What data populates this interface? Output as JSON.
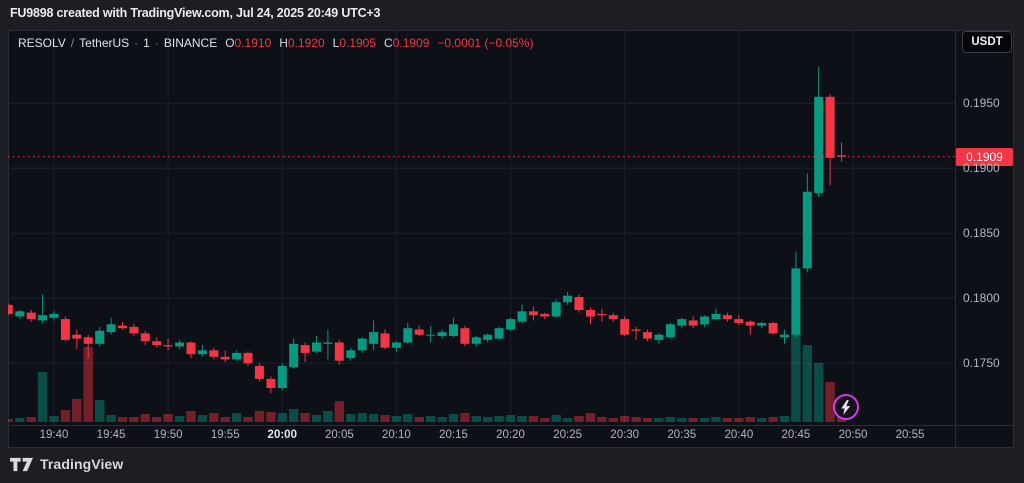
{
  "top_bar": {
    "attribution": "FU9898 created with TradingView.com, Jul 24, 2025 20:49 UTC+3"
  },
  "header": {
    "symbol": "RESOLV",
    "sep1": "/",
    "quote": "TetherUS",
    "sep2": "·",
    "interval": "1",
    "sep3": "·",
    "exchange": "BINANCE",
    "ohlc": [
      {
        "k": "O",
        "v": "0.1910"
      },
      {
        "k": "H",
        "v": "0.1920"
      },
      {
        "k": "L",
        "v": "0.1905"
      },
      {
        "k": "C",
        "v": "0.1909"
      }
    ],
    "change": "−0.0001 (−0.05%)"
  },
  "price_axis": {
    "currency_button": "USDT",
    "ticks": [
      "0.1950",
      "0.1900",
      "0.1850",
      "0.1800",
      "0.1750"
    ],
    "last_label": "0.1909"
  },
  "time_axis": {
    "labels": [
      {
        "t": "19:40",
        "bold": false
      },
      {
        "t": "19:45",
        "bold": false
      },
      {
        "t": "19:50",
        "bold": false
      },
      {
        "t": "19:55",
        "bold": false
      },
      {
        "t": "20:00",
        "bold": true
      },
      {
        "t": "20:05",
        "bold": false
      },
      {
        "t": "20:10",
        "bold": false
      },
      {
        "t": "20:15",
        "bold": false
      },
      {
        "t": "20:20",
        "bold": false
      },
      {
        "t": "20:25",
        "bold": false
      },
      {
        "t": "20:30",
        "bold": false
      },
      {
        "t": "20:35",
        "bold": false
      },
      {
        "t": "20:40",
        "bold": false
      },
      {
        "t": "20:45",
        "bold": false
      },
      {
        "t": "20:50",
        "bold": false
      },
      {
        "t": "20:55",
        "bold": false
      }
    ]
  },
  "footer": {
    "brand": "TradingView"
  },
  "icons": {
    "boost": "lightning-icon",
    "logo": "tradingview-logo"
  },
  "colors": {
    "up": "#089981",
    "down": "#f23645",
    "vol_up": "rgba(8,153,129,0.45)",
    "vol_down": "rgba(242,54,69,0.45)",
    "grid": "#1b202b",
    "last_label_bg": "#f23645",
    "boost_ring": "#cb3ce8"
  },
  "chart_data": {
    "type": "candlestick",
    "title": "RESOLV / TetherUS · 1 · BINANCE",
    "interval": "1m",
    "legend_position": "top-left",
    "grid": true,
    "ylim": [
      0.17025,
      0.20064
    ],
    "last_price": 0.1909,
    "columns": [
      "time",
      "open",
      "high",
      "low",
      "close",
      "volume_rel"
    ],
    "candles": [
      [
        "19:36",
        0.1795,
        0.1796,
        0.1787,
        0.1788,
        3
      ],
      [
        "19:37",
        0.1786,
        0.1791,
        0.1784,
        0.179,
        4
      ],
      [
        "19:38",
        0.1789,
        0.1791,
        0.1782,
        0.1784,
        5
      ],
      [
        "19:39",
        0.1783,
        0.1803,
        0.1781,
        0.1787,
        50
      ],
      [
        "19:40",
        0.1785,
        0.179,
        0.1783,
        0.1788,
        6
      ],
      [
        "19:41",
        0.1784,
        0.1786,
        0.1767,
        0.1768,
        12
      ],
      [
        "19:42",
        0.1772,
        0.1776,
        0.1761,
        0.1769,
        23
      ],
      [
        "19:43",
        0.177,
        0.1772,
        0.1754,
        0.1765,
        75
      ],
      [
        "19:44",
        0.1765,
        0.1778,
        0.1763,
        0.1775,
        22
      ],
      [
        "19:45",
        0.1774,
        0.1785,
        0.1772,
        0.178,
        7
      ],
      [
        "19:46",
        0.1779,
        0.1782,
        0.1776,
        0.1777,
        5
      ],
      [
        "19:47",
        0.1778,
        0.178,
        0.1771,
        0.1773,
        5
      ],
      [
        "19:48",
        0.1773,
        0.1775,
        0.1764,
        0.1767,
        8
      ],
      [
        "19:49",
        0.1767,
        0.177,
        0.1762,
        0.1764,
        5
      ],
      [
        "19:50",
        0.1764,
        0.1769,
        0.176,
        0.1763,
        8
      ],
      [
        "19:51",
        0.1763,
        0.1768,
        0.1761,
        0.1766,
        6
      ],
      [
        "19:52",
        0.1766,
        0.1767,
        0.1754,
        0.1757,
        11
      ],
      [
        "19:53",
        0.1757,
        0.1764,
        0.1755,
        0.176,
        7
      ],
      [
        "19:54",
        0.176,
        0.1762,
        0.1753,
        0.1755,
        9
      ],
      [
        "19:55",
        0.1755,
        0.176,
        0.1751,
        0.1753,
        5
      ],
      [
        "19:56",
        0.1753,
        0.176,
        0.1752,
        0.1758,
        9
      ],
      [
        "19:57",
        0.1758,
        0.1759,
        0.1748,
        0.175,
        5
      ],
      [
        "19:58",
        0.1748,
        0.175,
        0.1736,
        0.1738,
        11
      ],
      [
        "19:59",
        0.1738,
        0.174,
        0.1727,
        0.1731,
        10
      ],
      [
        "20:00",
        0.1731,
        0.175,
        0.1729,
        0.1748,
        9
      ],
      [
        "20:01",
        0.1747,
        0.1769,
        0.1746,
        0.1765,
        13
      ],
      [
        "20:02",
        0.1764,
        0.1766,
        0.1751,
        0.1758,
        9
      ],
      [
        "20:03",
        0.1759,
        0.1771,
        0.1758,
        0.1766,
        7
      ],
      [
        "20:04",
        0.1765,
        0.1776,
        0.1753,
        0.1766,
        11
      ],
      [
        "20:05",
        0.1766,
        0.1768,
        0.1749,
        0.1752,
        21
      ],
      [
        "20:06",
        0.1754,
        0.1762,
        0.1752,
        0.176,
        8
      ],
      [
        "20:07",
        0.176,
        0.177,
        0.1758,
        0.1769,
        9
      ],
      [
        "20:08",
        0.1765,
        0.1783,
        0.176,
        0.1774,
        8
      ],
      [
        "20:09",
        0.1773,
        0.1776,
        0.1761,
        0.1762,
        7
      ],
      [
        "20:10",
        0.1762,
        0.1767,
        0.1759,
        0.1766,
        6
      ],
      [
        "20:11",
        0.1766,
        0.1781,
        0.1765,
        0.1777,
        8
      ],
      [
        "20:12",
        0.1776,
        0.1779,
        0.1771,
        0.1772,
        5
      ],
      [
        "20:13",
        0.1772,
        0.1779,
        0.1766,
        0.1772,
        6
      ],
      [
        "20:14",
        0.1771,
        0.1776,
        0.1769,
        0.1774,
        5
      ],
      [
        "20:15",
        0.1771,
        0.1785,
        0.177,
        0.178,
        8
      ],
      [
        "20:16",
        0.1777,
        0.1779,
        0.1763,
        0.1765,
        9
      ],
      [
        "20:17",
        0.1765,
        0.1771,
        0.1763,
        0.177,
        6
      ],
      [
        "20:18",
        0.1768,
        0.1773,
        0.1766,
        0.1772,
        5
      ],
      [
        "20:19",
        0.1769,
        0.1778,
        0.1768,
        0.1777,
        6
      ],
      [
        "20:20",
        0.1776,
        0.1785,
        0.1775,
        0.1784,
        7
      ],
      [
        "20:21",
        0.1782,
        0.1795,
        0.1781,
        0.179,
        6
      ],
      [
        "20:22",
        0.179,
        0.1794,
        0.1783,
        0.1787,
        6
      ],
      [
        "20:23",
        0.1788,
        0.1789,
        0.1784,
        0.1786,
        4
      ],
      [
        "20:24",
        0.1786,
        0.1799,
        0.1785,
        0.1797,
        7
      ],
      [
        "20:25",
        0.1797,
        0.1805,
        0.1795,
        0.1802,
        4
      ],
      [
        "20:26",
        0.1801,
        0.1803,
        0.1789,
        0.1791,
        6
      ],
      [
        "20:27",
        0.1791,
        0.1793,
        0.178,
        0.1786,
        9
      ],
      [
        "20:28",
        0.1788,
        0.1792,
        0.1782,
        0.1787,
        5
      ],
      [
        "20:29",
        0.1787,
        0.1789,
        0.1782,
        0.1784,
        4
      ],
      [
        "20:30",
        0.1784,
        0.1786,
        0.1771,
        0.1772,
        6
      ],
      [
        "20:31",
        0.1776,
        0.1778,
        0.1768,
        0.1775,
        5
      ],
      [
        "20:32",
        0.1774,
        0.1776,
        0.1767,
        0.1769,
        4
      ],
      [
        "20:33",
        0.1768,
        0.1773,
        0.1765,
        0.1772,
        4
      ],
      [
        "20:34",
        0.177,
        0.1781,
        0.1769,
        0.178,
        5
      ],
      [
        "20:35",
        0.1779,
        0.1785,
        0.1777,
        0.1784,
        4
      ],
      [
        "20:36",
        0.1783,
        0.1786,
        0.1777,
        0.1779,
        4
      ],
      [
        "20:37",
        0.178,
        0.1787,
        0.1778,
        0.1786,
        4
      ],
      [
        "20:38",
        0.1784,
        0.1792,
        0.1783,
        0.1788,
        5
      ],
      [
        "20:39",
        0.1787,
        0.1789,
        0.1782,
        0.1784,
        4
      ],
      [
        "20:40",
        0.1784,
        0.1787,
        0.1779,
        0.1781,
        4
      ],
      [
        "20:41",
        0.1782,
        0.1783,
        0.1772,
        0.1779,
        5
      ],
      [
        "20:42",
        0.1779,
        0.1782,
        0.1777,
        0.1781,
        4
      ],
      [
        "20:43",
        0.1781,
        0.1782,
        0.1772,
        0.1773,
        5
      ],
      [
        "20:44",
        0.177,
        0.1776,
        0.1765,
        0.1772,
        6
      ],
      [
        "20:45",
        0.1772,
        0.1836,
        0.177,
        0.1823,
        89
      ],
      [
        "20:46",
        0.1823,
        0.1896,
        0.182,
        0.1882,
        77
      ],
      [
        "20:47",
        0.1881,
        0.1978,
        0.1878,
        0.1955,
        59
      ],
      [
        "20:48",
        0.1955,
        0.1957,
        0.1887,
        0.1908,
        40
      ],
      [
        "20:49",
        0.191,
        0.192,
        0.1905,
        0.1909,
        10
      ]
    ]
  }
}
